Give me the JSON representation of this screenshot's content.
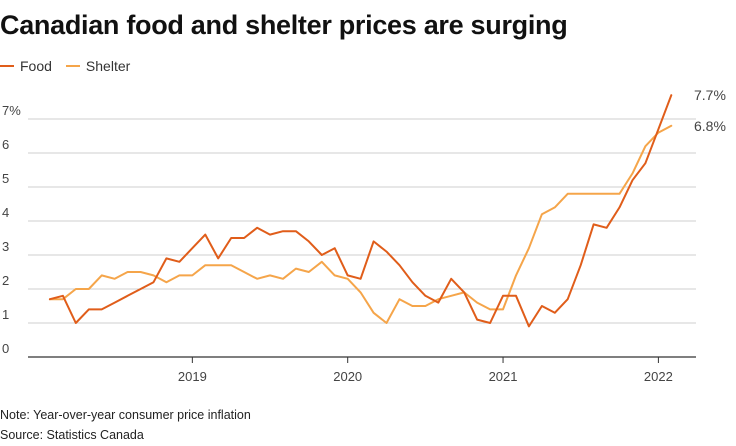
{
  "title": "Canadian food and shelter prices are surging",
  "note": "Note: Year-over-year consumer price inflation",
  "source": "Source: Statistics Canada",
  "colors": {
    "food": "#e05d1a",
    "shelter": "#f5a54a",
    "grid": "#cfcfcf",
    "axis": "#333333"
  },
  "chart_data": {
    "type": "line",
    "title": "Canadian food and shelter prices are surging",
    "xlabel": "",
    "ylabel": "",
    "ylim": [
      0,
      8
    ],
    "yticks": [
      0,
      1,
      2,
      3,
      4,
      5,
      6,
      7
    ],
    "ytick_labels": [
      "0",
      "1",
      "2",
      "3",
      "4",
      "5",
      "6",
      "7%"
    ],
    "xlim": [
      2018.0,
      2022.3
    ],
    "xticks": [
      2019,
      2020,
      2021,
      2022
    ],
    "xtick_labels": [
      "2019",
      "2020",
      "2021",
      "2022"
    ],
    "x_start": 2018.0833,
    "x_step": 0.08333,
    "legend_position": "top-left",
    "series": [
      {
        "name": "Food",
        "color": "#e05d1a",
        "end_label": "7.7%",
        "values": [
          1.7,
          1.8,
          1.0,
          1.4,
          1.4,
          1.6,
          1.8,
          2.0,
          2.2,
          2.9,
          2.8,
          3.2,
          3.6,
          2.9,
          3.5,
          3.5,
          3.8,
          3.6,
          3.7,
          3.7,
          3.4,
          3.0,
          3.2,
          2.4,
          2.3,
          3.4,
          3.1,
          2.7,
          2.2,
          1.8,
          1.6,
          2.3,
          1.9,
          1.1,
          1.0,
          1.8,
          1.8,
          0.9,
          1.5,
          1.3,
          1.7,
          2.7,
          3.9,
          3.8,
          4.4,
          5.2,
          5.7,
          6.7,
          7.7
        ]
      },
      {
        "name": "Shelter",
        "color": "#f5a54a",
        "end_label": "6.8%",
        "values": [
          1.7,
          1.7,
          2.0,
          2.0,
          2.4,
          2.3,
          2.5,
          2.5,
          2.4,
          2.2,
          2.4,
          2.4,
          2.7,
          2.7,
          2.7,
          2.5,
          2.3,
          2.4,
          2.3,
          2.6,
          2.5,
          2.8,
          2.4,
          2.3,
          1.9,
          1.3,
          1.0,
          1.7,
          1.5,
          1.5,
          1.7,
          1.8,
          1.9,
          1.6,
          1.4,
          1.4,
          2.4,
          3.2,
          4.2,
          4.4,
          4.8,
          4.8,
          4.8,
          4.8,
          4.8,
          5.4,
          6.2,
          6.6,
          6.8
        ]
      }
    ]
  }
}
